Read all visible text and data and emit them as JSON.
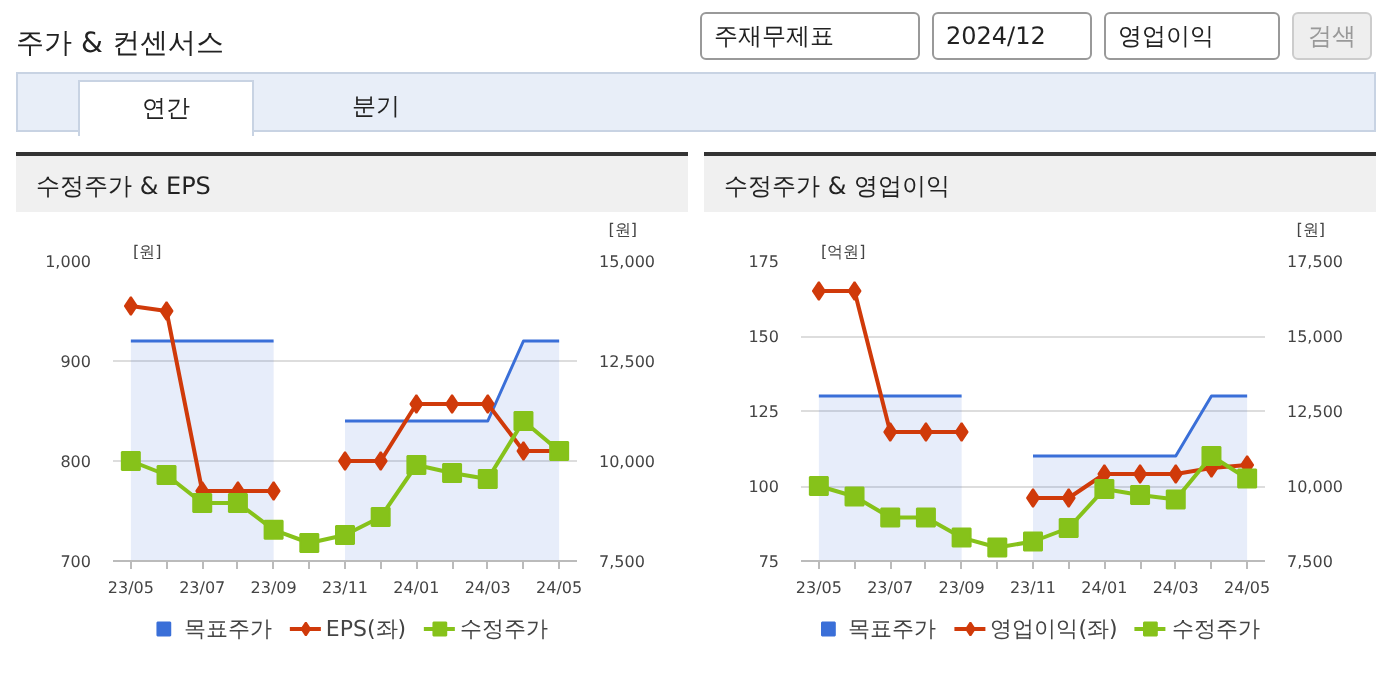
{
  "chart_data": [
    {
      "type": "other",
      "title": "주가 & 컨센서스",
      "annotations": [
        "주재무제표",
        "2024/12",
        "영업이익",
        "검색",
        "연간",
        "분기"
      ]
    },
    {
      "type": "line",
      "title": "수정주가 & EPS",
      "ylabel": "[원]",
      "y2label": "[원]",
      "categories": [
        "23/05",
        null,
        "23/07",
        null,
        "23/09",
        null,
        "23/11",
        null,
        "24/01",
        null,
        "24/03",
        null,
        "24/05"
      ],
      "ylim": [
        700,
        1000
      ],
      "yticks": [
        700,
        800,
        900,
        {
          "value": 1000,
          "label": "1,000"
        }
      ],
      "y2lim": [
        7500,
        15000
      ],
      "y2ticks": [
        {
          "value": 7500,
          "label": "7,500"
        },
        {
          "value": 10000,
          "label": "10,000"
        },
        {
          "value": 12500,
          "label": "12,500"
        },
        {
          "value": 15000,
          "label": "15,000"
        }
      ],
      "grid": "y",
      "legend": "bottom",
      "series": [
        {
          "name": "목표주가",
          "type": "area",
          "axis": "y2",
          "color": "#3a6fd8",
          "values": [
            13000,
            13000,
            13000,
            13000,
            13000,
            null,
            11000,
            11000,
            11000,
            11000,
            11000,
            13000,
            13000
          ]
        },
        {
          "name": "EPS(좌)",
          "type": "line",
          "marker": "diamond",
          "color": "#d03a0a",
          "values": [
            955,
            950,
            770,
            770,
            770,
            null,
            800,
            800,
            857,
            857,
            857,
            810,
            810
          ]
        },
        {
          "name": "수정주가",
          "type": "line",
          "marker": "square",
          "axis": "y2",
          "color": "#86c21a",
          "values": [
            10000,
            9650,
            8950,
            8950,
            8280,
            7950,
            8150,
            8600,
            9900,
            9700,
            9550,
            11000,
            10250
          ]
        }
      ]
    },
    {
      "type": "line",
      "title": "수정주가 & 영업이익",
      "ylabel": "[억원]",
      "y2label": "[원]",
      "categories": [
        "23/05",
        null,
        "23/07",
        null,
        "23/09",
        null,
        "23/11",
        null,
        "24/01",
        null,
        "24/03",
        null,
        "24/05"
      ],
      "ylim": [
        75,
        175
      ],
      "yticks": [
        75,
        100,
        125,
        150,
        175
      ],
      "y2lim": [
        7500,
        17500
      ],
      "y2ticks": [
        {
          "value": 7500,
          "label": "7,500"
        },
        {
          "value": 10000,
          "label": "10,000"
        },
        {
          "value": 12500,
          "label": "12,500"
        },
        {
          "value": 15000,
          "label": "15,000"
        },
        {
          "value": 17500,
          "label": "17,500"
        }
      ],
      "grid": "y",
      "legend": "bottom",
      "series": [
        {
          "name": "목표주가",
          "type": "area",
          "axis": "y2",
          "color": "#3a6fd8",
          "values": [
            13000,
            13000,
            13000,
            13000,
            13000,
            null,
            11000,
            11000,
            11000,
            11000,
            11000,
            13000,
            13000
          ]
        },
        {
          "name": "영업이익(좌)",
          "type": "line",
          "marker": "diamond",
          "color": "#d03a0a",
          "values": [
            165,
            165,
            118,
            118,
            118,
            null,
            96,
            96,
            104,
            104,
            104,
            106,
            107
          ]
        },
        {
          "name": "수정주가",
          "type": "line",
          "marker": "square",
          "axis": "y2",
          "color": "#86c21a",
          "values": [
            10000,
            9650,
            8950,
            8950,
            8280,
            7950,
            8150,
            8600,
            9900,
            9700,
            9550,
            11000,
            10250
          ]
        }
      ]
    }
  ]
}
